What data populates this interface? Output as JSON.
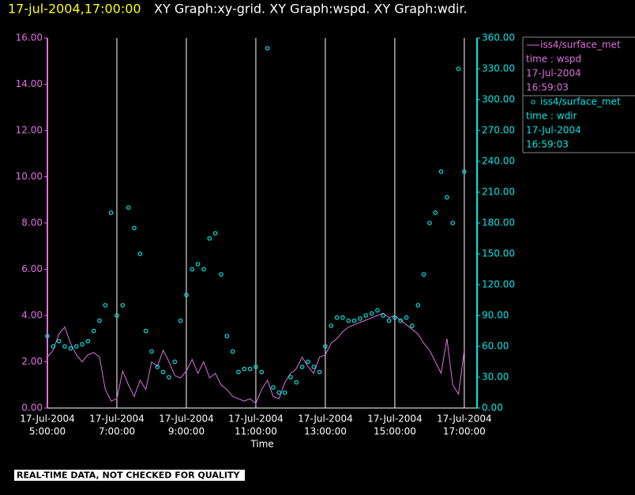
{
  "chart_data": {
    "type": "line-scatter",
    "title_time": "17-jul-2004,17:00:00",
    "title": "XY Graph:xy-grid.  XY Graph:wspd.  XY Graph:wdir.",
    "x_label": "Time",
    "footer": "REAL-TIME DATA, NOT CHECKED FOR QUALITY",
    "xlim": [
      "05:00",
      "17:22"
    ],
    "xticks": [
      {
        "value": "05:00",
        "date": "17-Jul-2004",
        "label": "5:00:00"
      },
      {
        "value": "07:00",
        "date": "17-Jul-2004",
        "label": "7:00:00"
      },
      {
        "value": "09:00",
        "date": "17-Jul-2004",
        "label": "9:00:00"
      },
      {
        "value": "11:00",
        "date": "17-Jul-2004",
        "label": "11:00:00"
      },
      {
        "value": "13:00",
        "date": "17-Jul-2004",
        "label": "13:00:00"
      },
      {
        "value": "15:00",
        "date": "17-Jul-2004",
        "label": "15:00:00"
      },
      {
        "value": "17:00",
        "date": "17-Jul-2004",
        "label": "17:00:00"
      }
    ],
    "ylim": [
      0,
      16
    ],
    "yticks": [
      {
        "value": 0,
        "label": "0.00"
      },
      {
        "value": 2,
        "label": "2.00"
      },
      {
        "value": 4,
        "label": "4.00"
      },
      {
        "value": 6,
        "label": "6.00"
      },
      {
        "value": 8,
        "label": "8.00"
      },
      {
        "value": 10,
        "label": "10.00"
      },
      {
        "value": 12,
        "label": "12.00"
      },
      {
        "value": 14,
        "label": "14.00"
      },
      {
        "value": 16,
        "label": "16.00"
      }
    ],
    "y2lim": [
      0,
      360
    ],
    "y2ticks": [
      {
        "value": 0,
        "label": "0.00"
      },
      {
        "value": 30,
        "label": "30.00"
      },
      {
        "value": 60,
        "label": "60.00"
      },
      {
        "value": 90,
        "label": "90.00"
      },
      {
        "value": 120,
        "label": "120.00"
      },
      {
        "value": 150,
        "label": "150.00"
      },
      {
        "value": 180,
        "label": "180.00"
      },
      {
        "value": 210,
        "label": "210.00"
      },
      {
        "value": 240,
        "label": "240.00"
      },
      {
        "value": 270,
        "label": "270.00"
      },
      {
        "value": 300,
        "label": "300.00"
      },
      {
        "value": 330,
        "label": "330.00"
      },
      {
        "value": 360,
        "label": "360.00"
      }
    ],
    "x": [
      "05:00",
      "05:10",
      "05:20",
      "05:30",
      "05:40",
      "05:50",
      "06:00",
      "06:10",
      "06:20",
      "06:30",
      "06:40",
      "06:50",
      "07:00",
      "07:10",
      "07:20",
      "07:30",
      "07:40",
      "07:50",
      "08:00",
      "08:10",
      "08:20",
      "08:30",
      "08:40",
      "08:50",
      "09:00",
      "09:10",
      "09:20",
      "09:30",
      "09:40",
      "09:50",
      "10:00",
      "10:10",
      "10:20",
      "10:30",
      "10:40",
      "10:50",
      "11:00",
      "11:10",
      "11:20",
      "11:30",
      "11:40",
      "11:50",
      "12:00",
      "12:10",
      "12:20",
      "12:30",
      "12:40",
      "12:50",
      "13:00",
      "13:10",
      "13:20",
      "13:30",
      "13:40",
      "13:50",
      "14:00",
      "14:10",
      "14:20",
      "14:30",
      "14:40",
      "14:50",
      "15:00",
      "15:10",
      "15:20",
      "15:30",
      "15:40",
      "15:50",
      "16:00",
      "16:10",
      "16:20",
      "16:30",
      "16:40",
      "16:50",
      "17:00"
    ],
    "series": [
      {
        "name": "iss4/surface_met",
        "var": "time : wspd",
        "date": "17-Jul-2004",
        "time": "16:59:03",
        "color": "#e070e0",
        "mark": "line",
        "values": [
          2.2,
          2.5,
          3.2,
          3.5,
          2.8,
          2.3,
          2.0,
          2.3,
          2.4,
          2.2,
          0.8,
          0.3,
          0.4,
          1.6,
          1.0,
          0.5,
          1.2,
          0.8,
          2.0,
          1.8,
          2.5,
          2.0,
          1.4,
          1.3,
          1.6,
          2.1,
          1.5,
          2.0,
          1.3,
          1.5,
          1.0,
          0.8,
          0.5,
          0.4,
          0.3,
          0.4,
          0.2,
          0.8,
          1.2,
          0.5,
          0.4,
          1.1,
          1.5,
          1.7,
          2.2,
          1.8,
          1.5,
          2.2,
          2.3,
          2.8,
          3.0,
          3.3,
          3.5,
          3.6,
          3.7,
          3.8,
          3.9,
          4.0,
          4.1,
          3.9,
          4.0,
          3.8,
          3.6,
          3.4,
          3.2,
          2.8,
          2.5,
          2.0,
          1.5,
          3.0,
          1.0,
          0.6,
          2.5
        ]
      },
      {
        "name": "iss4/surface_met",
        "var": "time : wdir",
        "date": "17-Jul-2004",
        "time": "16:59:03",
        "color": "#00e8e8",
        "mark": "scatter",
        "axis": "y2",
        "values": [
          70,
          60,
          65,
          60,
          58,
          60,
          62,
          65,
          75,
          85,
          100,
          190,
          90,
          100,
          195,
          175,
          150,
          75,
          55,
          40,
          35,
          30,
          45,
          85,
          110,
          135,
          140,
          135,
          165,
          170,
          130,
          70,
          55,
          35,
          38,
          38,
          40,
          35,
          350,
          20,
          15,
          15,
          30,
          25,
          40,
          45,
          40,
          35,
          60,
          80,
          88,
          88,
          85,
          85,
          87,
          90,
          92,
          95,
          90,
          85,
          88,
          85,
          88,
          80,
          100,
          130,
          180,
          190,
          230,
          205,
          180,
          330,
          230
        ]
      }
    ]
  }
}
